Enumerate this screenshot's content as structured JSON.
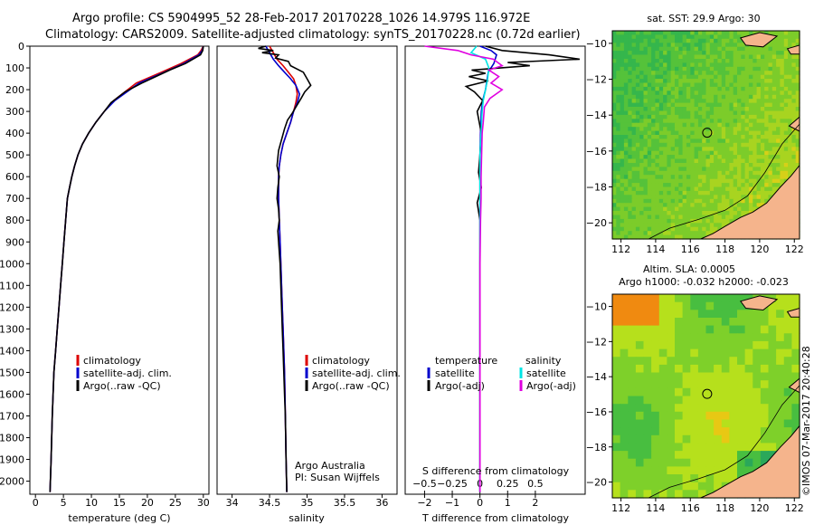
{
  "header": {
    "line1": "Argo profile: CS 5904995_52 28-Feb-2017 20170228_1026 14.979S 116.972E",
    "line2": "Climatology: CARS2009. Satellite-adjusted climatology: synTS_20170228.nc (0.72d earlier)"
  },
  "colors": {
    "climatology": "#dd0000",
    "satellite": "#0000cc",
    "argo": "#000000",
    "cyan": "#00e5e5",
    "magenta": "#e000e0",
    "land": "#f5b48c"
  },
  "chart_data": [
    {
      "type": "line",
      "name": "temperature-profile",
      "xlabel": "temperature (deg C)",
      "xlim": [
        -1,
        31
      ],
      "xticks": [
        0,
        5,
        10,
        15,
        20,
        25,
        30
      ],
      "ylim": [
        0,
        2060
      ],
      "yticks": [
        0,
        100,
        200,
        300,
        400,
        500,
        600,
        700,
        800,
        900,
        1000,
        1100,
        1200,
        1300,
        1400,
        1500,
        1600,
        1700,
        1800,
        1900,
        2000
      ],
      "legend": [
        "climatology",
        "satellite-adj. clim.",
        "Argo(..raw -QC)"
      ],
      "series": [
        {
          "name": "climatology",
          "color": "#dd0000",
          "x": [
            30.0,
            29.6,
            29.0,
            26.0,
            22.5,
            18.0,
            14.0,
            12.3,
            10.8,
            9.5,
            8.4,
            7.6,
            7.0,
            6.5,
            6.1,
            5.7,
            5.4,
            5.1,
            4.8,
            4.5,
            4.2,
            3.9,
            3.6,
            3.3,
            3.0,
            2.8,
            2.6
          ],
          "y": [
            0,
            20,
            40,
            80,
            120,
            170,
            250,
            300,
            350,
            400,
            450,
            500,
            550,
            600,
            650,
            700,
            800,
            900,
            1000,
            1100,
            1200,
            1300,
            1400,
            1500,
            1700,
            1900,
            2050
          ]
        },
        {
          "name": "satellite-adj. clim.",
          "color": "#0000cc",
          "x": [
            30.0,
            29.8,
            29.2,
            26.5,
            23.0,
            18.5,
            14.2,
            12.3,
            10.8,
            9.5,
            8.4,
            7.6,
            7.0,
            6.5,
            6.1,
            5.7,
            5.4,
            5.1,
            4.8,
            4.5,
            4.2,
            3.9,
            3.6,
            3.3,
            3.0,
            2.8,
            2.6
          ],
          "y": [
            0,
            20,
            40,
            80,
            120,
            170,
            250,
            300,
            350,
            400,
            450,
            500,
            550,
            600,
            650,
            700,
            800,
            900,
            1000,
            1100,
            1200,
            1300,
            1400,
            1500,
            1700,
            1900,
            2050
          ]
        },
        {
          "name": "Argo",
          "color": "#000000",
          "x": [
            30.0,
            29.9,
            29.5,
            26.8,
            24.0,
            21.5,
            19.0,
            16.0,
            13.5,
            12.3,
            10.8,
            9.5,
            8.4,
            7.6,
            7.0,
            6.5,
            6.1,
            5.7,
            5.4,
            5.1,
            4.8,
            4.5,
            4.2,
            3.9,
            3.6,
            3.3,
            3.0,
            2.8,
            2.6
          ],
          "y": [
            0,
            20,
            40,
            80,
            110,
            140,
            170,
            210,
            260,
            300,
            350,
            400,
            450,
            500,
            550,
            600,
            650,
            700,
            800,
            900,
            1000,
            1100,
            1200,
            1300,
            1400,
            1500,
            1700,
            1900,
            2050
          ]
        }
      ]
    },
    {
      "type": "line",
      "name": "salinity-profile",
      "xlabel": "salinity",
      "xlim": [
        33.8,
        36.2
      ],
      "xticks": [
        34,
        34.5,
        35,
        35.5,
        36
      ],
      "ylim": [
        0,
        2060
      ],
      "legend": [
        "climatology",
        "satellite-adj. clim.",
        "Argo(..raw -QC)"
      ],
      "annotation": [
        "Argo Australia",
        "PI: Susan Wijffels"
      ],
      "series": [
        {
          "name": "climatology",
          "color": "#dd0000",
          "x": [
            34.5,
            34.55,
            34.6,
            34.68,
            34.75,
            34.82,
            34.85,
            34.87,
            34.85,
            34.82,
            34.78,
            34.73,
            34.68,
            34.65,
            34.63,
            34.62,
            34.62,
            34.63,
            34.64,
            34.65,
            34.66,
            34.67,
            34.68,
            34.69,
            34.7,
            34.71,
            34.72,
            34.73
          ],
          "y": [
            0,
            30,
            60,
            90,
            120,
            150,
            180,
            220,
            260,
            300,
            350,
            400,
            450,
            500,
            550,
            600,
            700,
            800,
            900,
            1000,
            1100,
            1200,
            1300,
            1400,
            1500,
            1700,
            1900,
            2050
          ]
        },
        {
          "name": "satellite-adj. clim.",
          "color": "#0000cc",
          "x": [
            34.45,
            34.5,
            34.55,
            34.62,
            34.7,
            34.78,
            34.85,
            34.9,
            34.87,
            34.82,
            34.78,
            34.73,
            34.68,
            34.65,
            34.63,
            34.62,
            34.62,
            34.63,
            34.64,
            34.65,
            34.66,
            34.67,
            34.68,
            34.69,
            34.7,
            34.71,
            34.72,
            34.73
          ],
          "y": [
            0,
            30,
            60,
            90,
            120,
            150,
            180,
            220,
            260,
            300,
            350,
            400,
            450,
            500,
            550,
            600,
            700,
            800,
            900,
            1000,
            1100,
            1200,
            1300,
            1400,
            1500,
            1700,
            1900,
            2050
          ]
        },
        {
          "name": "Argo",
          "color": "#000000",
          "x": [
            34.45,
            34.35,
            34.55,
            34.4,
            34.62,
            34.58,
            34.75,
            34.78,
            34.95,
            35.0,
            35.05,
            34.97,
            34.92,
            34.85,
            34.8,
            34.74,
            34.7,
            34.66,
            34.62,
            34.6,
            34.63,
            34.61,
            34.6,
            34.62,
            34.63,
            34.61,
            34.62,
            34.64,
            34.65,
            34.66,
            34.67,
            34.68,
            34.69,
            34.7,
            34.71,
            34.72,
            34.73
          ],
          "y": [
            0,
            10,
            20,
            30,
            40,
            55,
            70,
            90,
            120,
            150,
            180,
            210,
            240,
            280,
            310,
            340,
            380,
            430,
            480,
            550,
            600,
            650,
            700,
            750,
            800,
            850,
            900,
            1000,
            1100,
            1200,
            1300,
            1400,
            1500,
            1600,
            1700,
            1900,
            2050
          ]
        }
      ]
    },
    {
      "type": "line",
      "name": "difference-profile",
      "xlabel": "T difference from climatology",
      "xlim": [
        -2.7,
        3.8
      ],
      "xticks": [
        -2,
        -1,
        0,
        1,
        2
      ],
      "ylim": [
        0,
        2060
      ],
      "x2label": "S difference from climatology",
      "x2ticks": [
        -0.5,
        -0.25,
        0,
        0.25,
        0.5
      ],
      "legend_left_title": "temperature",
      "legend_left": [
        "satellite",
        "Argo(-adj)"
      ],
      "legend_right_title": "salinity",
      "legend_right": [
        "satellite",
        "Argo(-adj)"
      ],
      "series": [
        {
          "name": "temperature satellite",
          "color": "#0000cc",
          "x": [
            0.0,
            0.4,
            0.6,
            0.5,
            0.3,
            0.25,
            0.2,
            0.1,
            0.05,
            0.02,
            0.0,
            0.0,
            0.0,
            0.0,
            0.0
          ],
          "y": [
            0,
            20,
            40,
            80,
            120,
            160,
            200,
            250,
            300,
            400,
            500,
            700,
            1000,
            1500,
            2050
          ]
        },
        {
          "name": "temperature Argo",
          "color": "#000000",
          "x": [
            0.2,
            0.8,
            2.5,
            3.6,
            1.0,
            1.8,
            -0.3,
            0.2,
            -0.4,
            0.3,
            -0.5,
            -0.2,
            0.1,
            -0.1,
            0.05,
            0.0,
            -0.05,
            0.05,
            -0.1,
            0.0,
            0.0,
            0.0,
            0.0
          ],
          "y": [
            0,
            20,
            40,
            60,
            75,
            90,
            110,
            125,
            140,
            160,
            185,
            210,
            250,
            300,
            400,
            500,
            580,
            650,
            720,
            800,
            1000,
            1500,
            2050
          ]
        },
        {
          "name": "salinity satellite",
          "color": "#00e5e5",
          "x": [
            -0.03,
            -0.08,
            0.05,
            0.08,
            0.07,
            0.05,
            0.03,
            0.02,
            0.01,
            0.0,
            0.0,
            0.0,
            0.0,
            0.0
          ],
          "y": [
            0,
            30,
            60,
            100,
            150,
            200,
            250,
            300,
            400,
            500,
            700,
            1000,
            1500,
            2050
          ]
        },
        {
          "name": "salinity Argo",
          "color": "#e000e0",
          "x": [
            -0.5,
            -0.2,
            -0.08,
            0.12,
            0.2,
            0.08,
            0.17,
            0.1,
            0.2,
            0.09,
            0.04,
            0.03,
            0.02,
            0.015,
            0.01,
            0.01,
            0.005,
            0.0,
            0.0
          ],
          "y": [
            0,
            20,
            40,
            60,
            90,
            110,
            140,
            170,
            200,
            240,
            280,
            350,
            400,
            500,
            600,
            700,
            800,
            1000,
            2050
          ]
        }
      ]
    },
    {
      "type": "heatmap",
      "name": "sst-map",
      "title": "sat. SST: 29.9  Argo: 30",
      "xlim": [
        111.5,
        122.3
      ],
      "ylim": [
        -20.9,
        -9.3
      ],
      "xticks": [
        112,
        114,
        116,
        118,
        120,
        122
      ],
      "yticks": [
        -10,
        -12,
        -14,
        -16,
        -18,
        -20
      ],
      "float_position": [
        116.972,
        -14.979
      ]
    },
    {
      "type": "heatmap",
      "name": "sla-map",
      "title": "Altim. SLA: 0.0005",
      "subtitle": "Argo h1000: -0.032  h2000: -0.023",
      "xlim": [
        111.5,
        122.3
      ],
      "ylim": [
        -20.9,
        -9.3
      ],
      "xticks": [
        112,
        114,
        116,
        118,
        120,
        122
      ],
      "yticks": [
        -10,
        -12,
        -14,
        -16,
        -18,
        -20
      ],
      "float_position": [
        116.972,
        -14.979
      ]
    }
  ],
  "credit": "©IMOS 07-Mar-2017 20:40:28"
}
